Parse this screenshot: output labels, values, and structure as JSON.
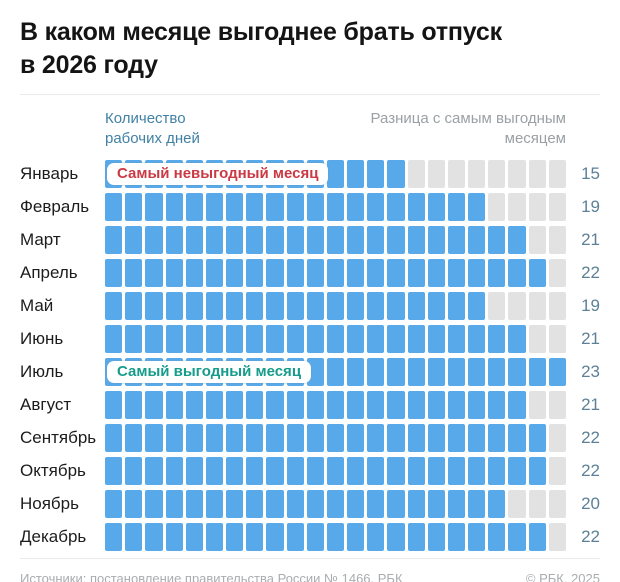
{
  "title": "В каком месяце выгоднее брать отпуск\nв 2026 году",
  "legend": {
    "workdays": "Количество рабочих дней",
    "difference": "Разница с самым выгодным месяцем"
  },
  "chart_data": {
    "type": "bar",
    "title": "В каком месяце выгоднее брать отпуск в 2026 году",
    "unit": "рабочие дни",
    "max_units_per_row": 23,
    "categories": [
      "Январь",
      "Февраль",
      "Март",
      "Апрель",
      "Май",
      "Июнь",
      "Июль",
      "Август",
      "Сентябрь",
      "Октябрь",
      "Ноябрь",
      "Декабрь"
    ],
    "values": [
      15,
      19,
      21,
      22,
      19,
      21,
      23,
      21,
      22,
      22,
      20,
      22
    ],
    "series_label": "Количество рабочих дней",
    "remainder_label": "Разница с самым выгодным месяцем",
    "annotations": [
      {
        "month": "Январь",
        "kind": "worst",
        "label": "Самый невыгодный месяц"
      },
      {
        "month": "Июль",
        "kind": "best",
        "label": "Самый выгодный месяц"
      }
    ],
    "legend_position": "top",
    "grid": false
  },
  "footer": {
    "sources": "Источники: постановление правительства России № 1466, РБК",
    "copyright": "© РБК, 2025"
  },
  "colors": {
    "workday": "#58a9ea",
    "difference": "#e2e2e2",
    "legend_workdays": "#4181a5",
    "legend_difference": "#9aa0a4",
    "value_text": "#5d8096",
    "worst_badge_text": "#cb3a44",
    "best_badge_text": "#179c8b"
  }
}
